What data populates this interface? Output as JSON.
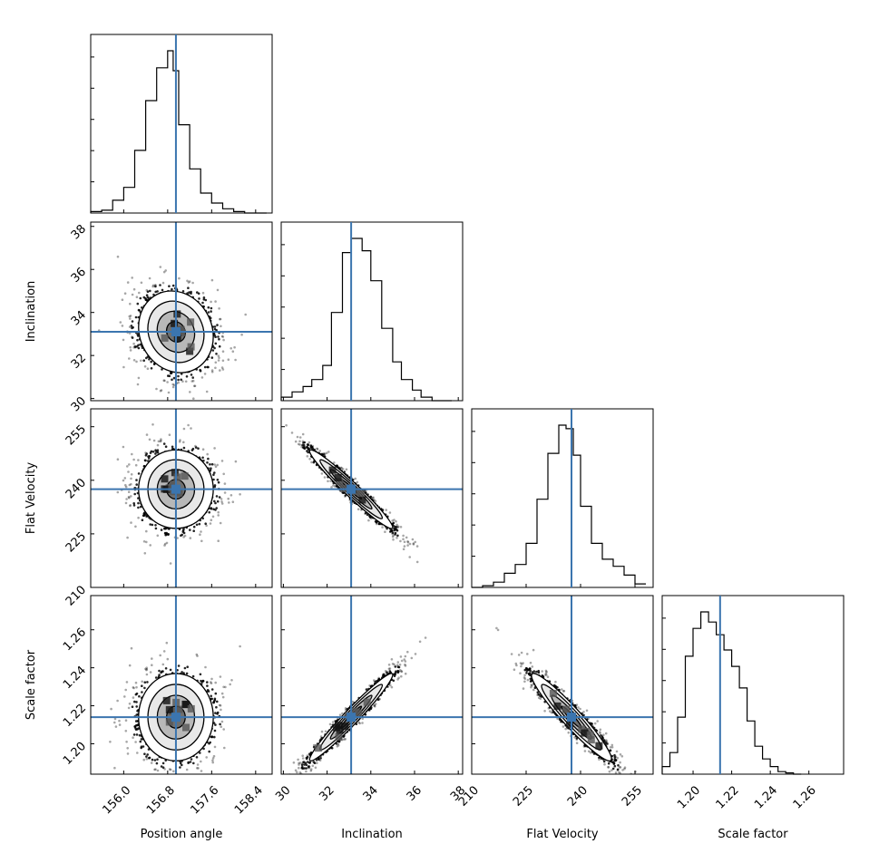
{
  "chart_data": {
    "type": "corner",
    "truth_color": "#3b75af",
    "params": [
      {
        "label": "Position angle",
        "range": [
          155.4,
          158.7
        ],
        "ticks": [
          156.0,
          156.8,
          157.6,
          158.4
        ],
        "tick_labels": [
          "156.0",
          "156.8",
          "157.6",
          "158.4"
        ],
        "truth": 156.95,
        "hist_edges": [
          155.4,
          155.6,
          155.8,
          156.0,
          156.2,
          156.4,
          156.6,
          156.8,
          156.9,
          157.0,
          157.2,
          157.4,
          157.6,
          157.8,
          158.0,
          158.2,
          158.4,
          158.6
        ],
        "hist_counts": [
          1,
          2,
          9,
          18,
          44,
          79,
          102,
          114,
          100,
          62,
          31,
          14,
          7,
          3,
          1,
          0,
          0
        ]
      },
      {
        "label": "Inclination",
        "range": [
          29.9,
          38.2
        ],
        "ticks": [
          30,
          32,
          34,
          36,
          38
        ],
        "tick_labels": [
          "30",
          "32",
          "34",
          "36",
          "38"
        ],
        "truth": 33.1,
        "hist_edges": [
          29.9,
          30.4,
          30.9,
          31.3,
          31.8,
          32.2,
          32.7,
          33.1,
          33.6,
          34.0,
          34.5,
          35.0,
          35.4,
          35.9,
          36.3,
          36.8,
          37.2,
          37.7
        ],
        "hist_counts": [
          2,
          5,
          8,
          12,
          20,
          50,
          84,
          92,
          85,
          68,
          41,
          22,
          12,
          6,
          2,
          0,
          0
        ]
      },
      {
        "label": "Flat Velocity",
        "range": [
          210,
          260
        ],
        "ticks": [
          210,
          225,
          240,
          255
        ],
        "tick_labels": [
          "210",
          "225",
          "240",
          "255"
        ],
        "truth": 237.5,
        "hist_edges": [
          210,
          213,
          216,
          219,
          222,
          225,
          228,
          231,
          234,
          236,
          238,
          240,
          243,
          246,
          249,
          252,
          255,
          258
        ],
        "hist_counts": [
          0,
          1,
          3,
          8,
          13,
          25,
          50,
          76,
          92,
          90,
          75,
          46,
          25,
          16,
          12,
          7,
          2
        ]
      },
      {
        "label": "Scale factor",
        "range": [
          1.184,
          1.278
        ],
        "ticks": [
          1.2,
          1.22,
          1.24,
          1.26
        ],
        "tick_labels": [
          "1.20",
          "1.22",
          "1.24",
          "1.26"
        ],
        "truth": 1.214,
        "hist_edges": [
          1.184,
          1.188,
          1.192,
          1.196,
          1.2,
          1.204,
          1.208,
          1.212,
          1.216,
          1.22,
          1.224,
          1.228,
          1.232,
          1.236,
          1.24,
          1.244,
          1.248,
          1.252,
          1.256
        ],
        "hist_counts": [
          6,
          17,
          45,
          93,
          115,
          128,
          120,
          110,
          98,
          85,
          68,
          42,
          22,
          12,
          6,
          2,
          1,
          0
        ]
      }
    ],
    "correlations": [
      {
        "row": 1,
        "col": 0,
        "rho": -0.12
      },
      {
        "row": 2,
        "col": 0,
        "rho": 0.0
      },
      {
        "row": 2,
        "col": 1,
        "rho": -0.97
      },
      {
        "row": 3,
        "col": 0,
        "rho": 0.0
      },
      {
        "row": 3,
        "col": 1,
        "rho": 0.97
      },
      {
        "row": 3,
        "col": 2,
        "rho": -0.95
      }
    ],
    "marginal_sd": [
      0.34,
      0.95,
      5.5,
      0.0115
    ],
    "contour_levels_sigma": [
      0.5,
      1.0,
      1.5,
      2.0
    ],
    "note": "2D panels show sample scatter, density grid and 4 contour levels; histogram and density shapes read from figure"
  }
}
